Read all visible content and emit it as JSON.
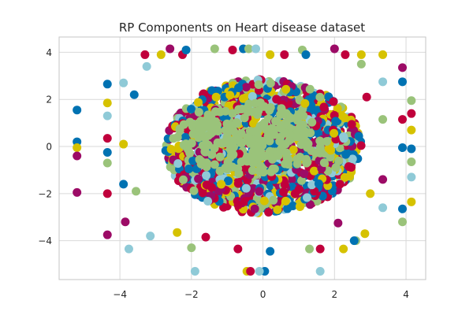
{
  "chart_data": {
    "type": "scatter",
    "title": "RP Components on Heart disease dataset",
    "xlabel": "",
    "ylabel": "",
    "xlim": [
      -5.7,
      4.55
    ],
    "ylim": [
      -5.65,
      4.65
    ],
    "xticks": [
      -4,
      -2,
      0,
      2,
      4
    ],
    "yticks": [
      -4,
      -2,
      0,
      2,
      4
    ],
    "xtick_labels": [
      "−4",
      "−2",
      "0",
      "2",
      "4"
    ],
    "ytick_labels": [
      "−4",
      "−2",
      "0",
      "2",
      "4"
    ],
    "grid": true,
    "legend": "none",
    "background": "#ffffff",
    "series_colors": [
      "#0072b2",
      "#c0003c",
      "#d6c200",
      "#9ac37a",
      "#8fcad7",
      "#9c0b66"
    ],
    "points": [
      {
        "x": -5.2,
        "y": 1.55,
        "c": 0
      },
      {
        "x": -5.2,
        "y": 0.2,
        "c": 0
      },
      {
        "x": -5.2,
        "y": -0.05,
        "c": 2
      },
      {
        "x": -5.2,
        "y": -0.4,
        "c": 5
      },
      {
        "x": -5.2,
        "y": -1.95,
        "c": 5
      },
      {
        "x": -4.35,
        "y": 2.65,
        "c": 0
      },
      {
        "x": -4.35,
        "y": 1.85,
        "c": 2
      },
      {
        "x": -4.35,
        "y": 1.3,
        "c": 4
      },
      {
        "x": -4.35,
        "y": 0.35,
        "c": 1
      },
      {
        "x": -4.35,
        "y": -0.25,
        "c": 0
      },
      {
        "x": -4.35,
        "y": -0.7,
        "c": 3
      },
      {
        "x": -4.35,
        "y": -2.0,
        "c": 1
      },
      {
        "x": -4.35,
        "y": -3.75,
        "c": 5
      },
      {
        "x": -3.9,
        "y": 2.7,
        "c": 4
      },
      {
        "x": -3.9,
        "y": 0.1,
        "c": 2
      },
      {
        "x": -3.9,
        "y": -1.6,
        "c": 0
      },
      {
        "x": -3.85,
        "y": -3.2,
        "c": 5
      },
      {
        "x": -3.75,
        "y": -4.35,
        "c": 4
      },
      {
        "x": -3.3,
        "y": 3.9,
        "c": 1
      },
      {
        "x": -3.25,
        "y": 3.4,
        "c": 4
      },
      {
        "x": -3.15,
        "y": -3.8,
        "c": 4
      },
      {
        "x": -2.85,
        "y": 3.9,
        "c": 2
      },
      {
        "x": -2.6,
        "y": 4.15,
        "c": 5
      },
      {
        "x": -2.4,
        "y": -3.65,
        "c": 2
      },
      {
        "x": -2.25,
        "y": 3.9,
        "c": 1
      },
      {
        "x": -2.15,
        "y": 4.1,
        "c": 0
      },
      {
        "x": -2.0,
        "y": -4.3,
        "c": 3
      },
      {
        "x": -1.9,
        "y": -5.3,
        "c": 4
      },
      {
        "x": -1.6,
        "y": -3.85,
        "c": 1
      },
      {
        "x": -1.35,
        "y": 4.15,
        "c": 3
      },
      {
        "x": -0.85,
        "y": 4.1,
        "c": 1
      },
      {
        "x": -0.55,
        "y": 4.15,
        "c": 0
      },
      {
        "x": -0.4,
        "y": 4.15,
        "c": 3
      },
      {
        "x": -0.2,
        "y": 4.15,
        "c": 4
      },
      {
        "x": 0.2,
        "y": 3.9,
        "c": 2
      },
      {
        "x": 0.6,
        "y": 3.9,
        "c": 1
      },
      {
        "x": 1.1,
        "y": 4.1,
        "c": 3
      },
      {
        "x": 1.2,
        "y": 3.9,
        "c": 0
      },
      {
        "x": 2.0,
        "y": 4.15,
        "c": 5
      },
      {
        "x": 2.3,
        "y": 3.9,
        "c": 1
      },
      {
        "x": 2.75,
        "y": 3.9,
        "c": 2
      },
      {
        "x": 2.75,
        "y": 3.5,
        "c": 3
      },
      {
        "x": 3.35,
        "y": 3.9,
        "c": 2
      },
      {
        "x": 3.35,
        "y": 2.75,
        "c": 4
      },
      {
        "x": 3.9,
        "y": 3.35,
        "c": 5
      },
      {
        "x": 3.9,
        "y": 2.75,
        "c": 0
      },
      {
        "x": 3.9,
        "y": 1.15,
        "c": 1
      },
      {
        "x": 4.15,
        "y": 1.95,
        "c": 3
      },
      {
        "x": 4.15,
        "y": 1.4,
        "c": 1
      },
      {
        "x": 4.15,
        "y": 0.7,
        "c": 2
      },
      {
        "x": 4.15,
        "y": -0.1,
        "c": 0
      },
      {
        "x": 4.15,
        "y": -0.65,
        "c": 3
      },
      {
        "x": 4.15,
        "y": -1.3,
        "c": 4
      },
      {
        "x": 4.15,
        "y": -2.35,
        "c": 2
      },
      {
        "x": 3.9,
        "y": -0.05,
        "c": 0
      },
      {
        "x": 3.9,
        "y": -2.65,
        "c": 0
      },
      {
        "x": 3.9,
        "y": -3.2,
        "c": 3
      },
      {
        "x": 3.35,
        "y": -2.6,
        "c": 4
      },
      {
        "x": 3.35,
        "y": -1.4,
        "c": 5
      },
      {
        "x": 3.35,
        "y": 1.15,
        "c": 3
      },
      {
        "x": 2.85,
        "y": -3.7,
        "c": 2
      },
      {
        "x": 2.6,
        "y": -4.0,
        "c": 3
      },
      {
        "x": 2.25,
        "y": -4.35,
        "c": 2
      },
      {
        "x": 2.1,
        "y": -3.25,
        "c": 5
      },
      {
        "x": 1.6,
        "y": -4.35,
        "c": 1
      },
      {
        "x": 1.6,
        "y": -5.3,
        "c": 4
      },
      {
        "x": 1.3,
        "y": -4.35,
        "c": 3
      },
      {
        "x": 0.2,
        "y": -4.45,
        "c": 0
      },
      {
        "x": 0.05,
        "y": -5.3,
        "c": 0
      },
      {
        "x": -0.1,
        "y": -5.3,
        "c": 4
      },
      {
        "x": -0.45,
        "y": -5.3,
        "c": 2
      },
      {
        "x": -0.35,
        "y": -5.3,
        "c": 1
      },
      {
        "x": -0.7,
        "y": -4.35,
        "c": 1
      },
      {
        "x": 2.9,
        "y": 2.1,
        "c": 1
      },
      {
        "x": 3.0,
        "y": -2.0,
        "c": 2
      },
      {
        "x": -3.6,
        "y": 2.2,
        "c": 0
      },
      {
        "x": -3.55,
        "y": -1.9,
        "c": 3
      },
      {
        "x": 2.55,
        "y": -4.0,
        "c": 0
      }
    ],
    "core_cloud": {
      "count": 1500,
      "seed": 7,
      "center": [
        0.0,
        0.0
      ],
      "radii": [
        2.75,
        2.85
      ],
      "color_weights": [
        0.24,
        0.24,
        0.16,
        0.14,
        0.08,
        0.14
      ]
    },
    "overlay_cloud": {
      "count": 230,
      "seed": 3,
      "center": [
        -0.3,
        0.35
      ],
      "radii": [
        2.1,
        1.6
      ],
      "color_index": 3
    }
  }
}
